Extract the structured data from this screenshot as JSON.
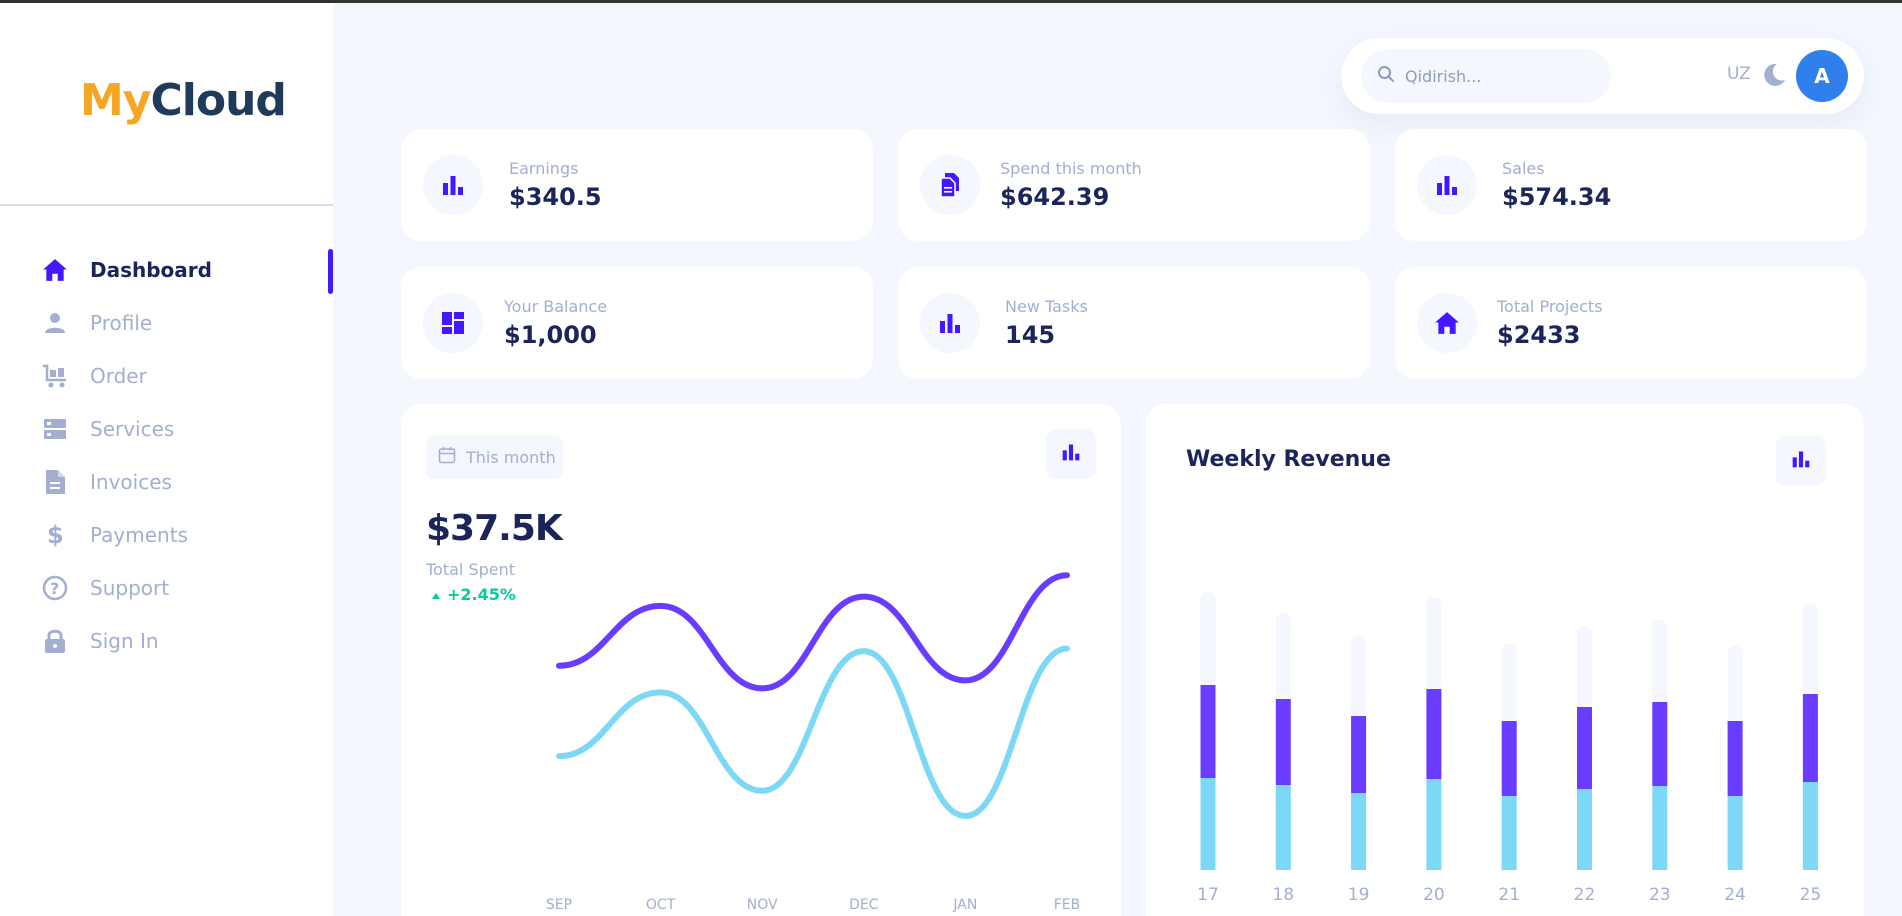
{
  "brand": {
    "part1": "My",
    "part2": "Cloud"
  },
  "sidebar": {
    "items": [
      {
        "label": "Dashboard",
        "icon": "home-icon",
        "active": true
      },
      {
        "label": "Profile",
        "icon": "person-icon"
      },
      {
        "label": "Order",
        "icon": "cart-icon"
      },
      {
        "label": "Services",
        "icon": "server-icon"
      },
      {
        "label": "Invoices",
        "icon": "document-icon"
      },
      {
        "label": "Payments",
        "icon": "dollar-icon"
      },
      {
        "label": "Support",
        "icon": "help-icon"
      },
      {
        "label": "Sign In",
        "icon": "lock-icon"
      }
    ]
  },
  "header": {
    "search_placeholder": "Qidirish...",
    "language": "UZ",
    "avatar_initial": "A"
  },
  "stats": [
    {
      "label": "Earnings",
      "value": "$340.5",
      "icon": "bar-chart-icon"
    },
    {
      "label": "Spend this month",
      "value": "$642.39",
      "icon": "files-icon"
    },
    {
      "label": "Sales",
      "value": "$574.34",
      "icon": "bar-chart-icon"
    },
    {
      "label": "Your Balance",
      "value": "$1,000",
      "icon": "dashboard-icon"
    },
    {
      "label": "New Tasks",
      "value": "145",
      "icon": "bar-chart-icon"
    },
    {
      "label": "Total Projects",
      "value": "$2433",
      "icon": "home-icon"
    }
  ],
  "spent_card": {
    "period_button": "This month",
    "total": "$37.5K",
    "total_label": "Total Spent",
    "change": "+2.45%"
  },
  "revenue_card": {
    "title": "Weekly Revenue"
  },
  "colors": {
    "accent": "#4318ff",
    "purple": "#6a3cff",
    "cyan": "#7dd8f5",
    "bg": "#f4f7fe",
    "positive": "#05cd99"
  },
  "chart_data": [
    {
      "type": "line",
      "x": [
        "SEP",
        "OCT",
        "NOV",
        "DEC",
        "JAN",
        "FEB"
      ],
      "series": [
        {
          "values": [
            55,
            100,
            38,
            107,
            44,
            123
          ]
        },
        {
          "values": [
            -13,
            35,
            -39,
            66,
            -58,
            68
          ]
        }
      ],
      "ylim": [
        -70,
        130
      ],
      "grid": false
    },
    {
      "type": "bar",
      "categories": [
        "17",
        "18",
        "19",
        "20",
        "21",
        "22",
        "23",
        "24",
        "25"
      ],
      "series": [
        {
          "values": [
            92,
            85,
            77,
            91,
            74,
            81,
            84,
            74,
            88
          ]
        },
        {
          "values": [
            93,
            86,
            77,
            90,
            75,
            82,
            84,
            75,
            88
          ]
        },
        {
          "values": [
            93,
            86,
            80,
            92,
            77,
            81,
            82,
            75,
            91
          ]
        }
      ],
      "stacked": true,
      "grid": false
    }
  ]
}
